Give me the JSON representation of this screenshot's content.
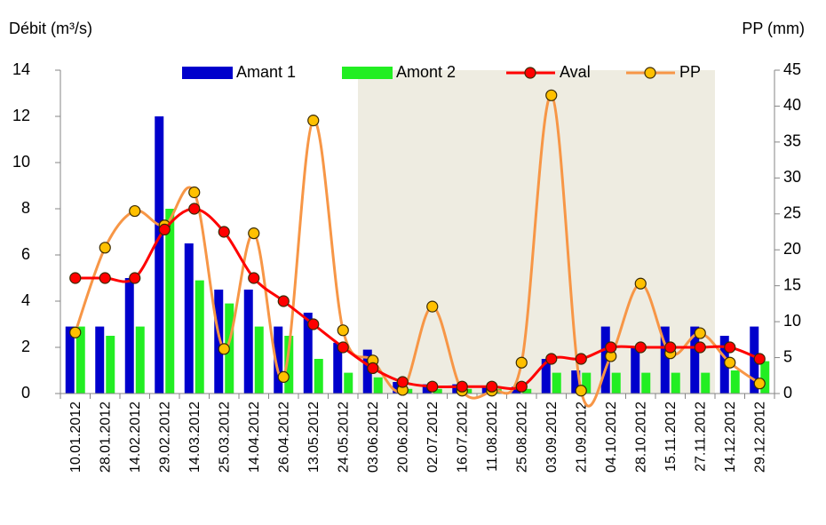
{
  "chart_data": {
    "type": "bar",
    "y_label": "Débit (m³/s)",
    "y2_label": "PP (mm)",
    "categories": [
      "10.01.2012",
      "28.01.2012",
      "14.02.2012",
      "29.02.2012",
      "14.03.2012",
      "25.03.2012",
      "14.04.2012",
      "26.04.2012",
      "13.05.2012",
      "24.05.2012",
      "03.06.2012",
      "20.06.2012",
      "02.07.2012",
      "16.07.2012",
      "11.08.2012",
      "25.08.2012",
      "03.09.2012",
      "21.09.2012",
      "04.10.2012",
      "28.10.2012",
      "15.11.2012",
      "27.11.2012",
      "14.12.2012",
      "29.12.2012"
    ],
    "shaded_from": "03.06.2012",
    "shaded_to": "27.11.2012",
    "shade_color": "#eeece1",
    "series": [
      {
        "name": "Amant 1",
        "type": "bar",
        "color": "#0000cc",
        "values": [
          2.9,
          2.9,
          5,
          12,
          6.5,
          4.5,
          4.5,
          2.9,
          3.5,
          2.2,
          1.9,
          0.5,
          0.4,
          0.4,
          0.3,
          0.3,
          1.5,
          1,
          2.9,
          2,
          2.9,
          2.9,
          2.5,
          2.9
        ]
      },
      {
        "name": "Amont 2",
        "type": "bar",
        "color": "#22ee22",
        "values": [
          2.9,
          2.5,
          2.9,
          8,
          4.9,
          3.9,
          2.9,
          2.5,
          1.5,
          0.9,
          0.7,
          0.2,
          0.2,
          0.2,
          0.2,
          0.2,
          0.9,
          0.9,
          0.9,
          0.9,
          0.9,
          0.9,
          1,
          1.4
        ]
      },
      {
        "name": "Aval",
        "type": "line",
        "color": "#ff0000",
        "marker_color": "#ff0000",
        "values": [
          5,
          5,
          5,
          7.1,
          8,
          7,
          5,
          4,
          3,
          2,
          1.1,
          0.5,
          0.3,
          0.3,
          0.3,
          0.3,
          1.5,
          1.5,
          2,
          2,
          2,
          2,
          2,
          1.5
        ]
      },
      {
        "name": "PP",
        "type": "line",
        "axis": "y2",
        "color": "#f79646",
        "marker_color": "#ffc000",
        "values": [
          8.5,
          20.3,
          25.4,
          23.4,
          28,
          6.2,
          22.3,
          2.3,
          38,
          8.8,
          4.6,
          0.5,
          12.1,
          0.4,
          0.4,
          4.3,
          41.5,
          0.4,
          5.2,
          15.3,
          5.6,
          8.4,
          4.3,
          1.4
        ]
      }
    ],
    "ylim": [
      0,
      14
    ],
    "yticks": [
      0,
      2,
      4,
      6,
      8,
      10,
      12,
      14
    ],
    "y2lim": [
      0,
      45
    ],
    "y2ticks": [
      0,
      5,
      10,
      15,
      20,
      25,
      30,
      35,
      40,
      45
    ],
    "grid": false
  }
}
